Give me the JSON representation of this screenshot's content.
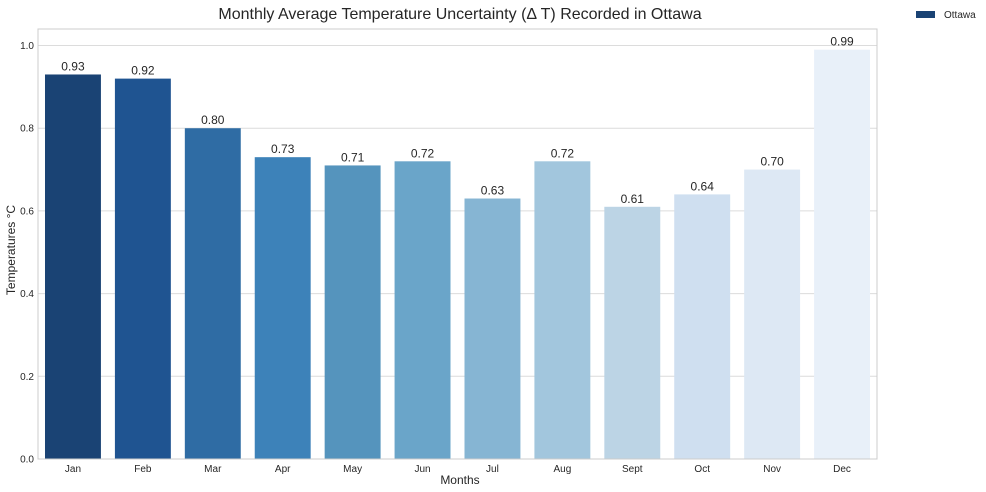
{
  "chart_data": {
    "type": "bar",
    "title": "Monthly Average Temperature Uncertainty (Δ T) Recorded in Ottawa",
    "xlabel": "Months",
    "ylabel": "Temperatures °C",
    "categories": [
      "Jan",
      "Feb",
      "Mar",
      "Apr",
      "May",
      "Jun",
      "Jul",
      "Aug",
      "Sept",
      "Oct",
      "Nov",
      "Dec"
    ],
    "values": [
      0.93,
      0.92,
      0.8,
      0.73,
      0.71,
      0.72,
      0.63,
      0.72,
      0.61,
      0.64,
      0.7,
      0.99
    ],
    "value_labels": [
      "0.93",
      "0.92",
      "0.80",
      "0.73",
      "0.71",
      "0.72",
      "0.63",
      "0.72",
      "0.61",
      "0.64",
      "0.70",
      "0.99"
    ],
    "bar_colors": [
      "#1a4374",
      "#1f5491",
      "#2f6ca4",
      "#3d82b9",
      "#5594bd",
      "#6aa5c9",
      "#86b5d3",
      "#a2c6dd",
      "#bcd4e5",
      "#cfdff0",
      "#dde8f4",
      "#e8f0f9"
    ],
    "ylim": [
      0,
      1.04
    ],
    "yticks": [
      0.0,
      0.2,
      0.4,
      0.6,
      0.8,
      1.0
    ],
    "ytick_labels": [
      "0.0",
      "0.2",
      "0.4",
      "0.6",
      "0.8",
      "1.0"
    ],
    "grid": true,
    "legend": {
      "position": "outside-top-right",
      "entries": [
        {
          "label": "Ottawa",
          "color": "#1a4374"
        }
      ]
    }
  }
}
